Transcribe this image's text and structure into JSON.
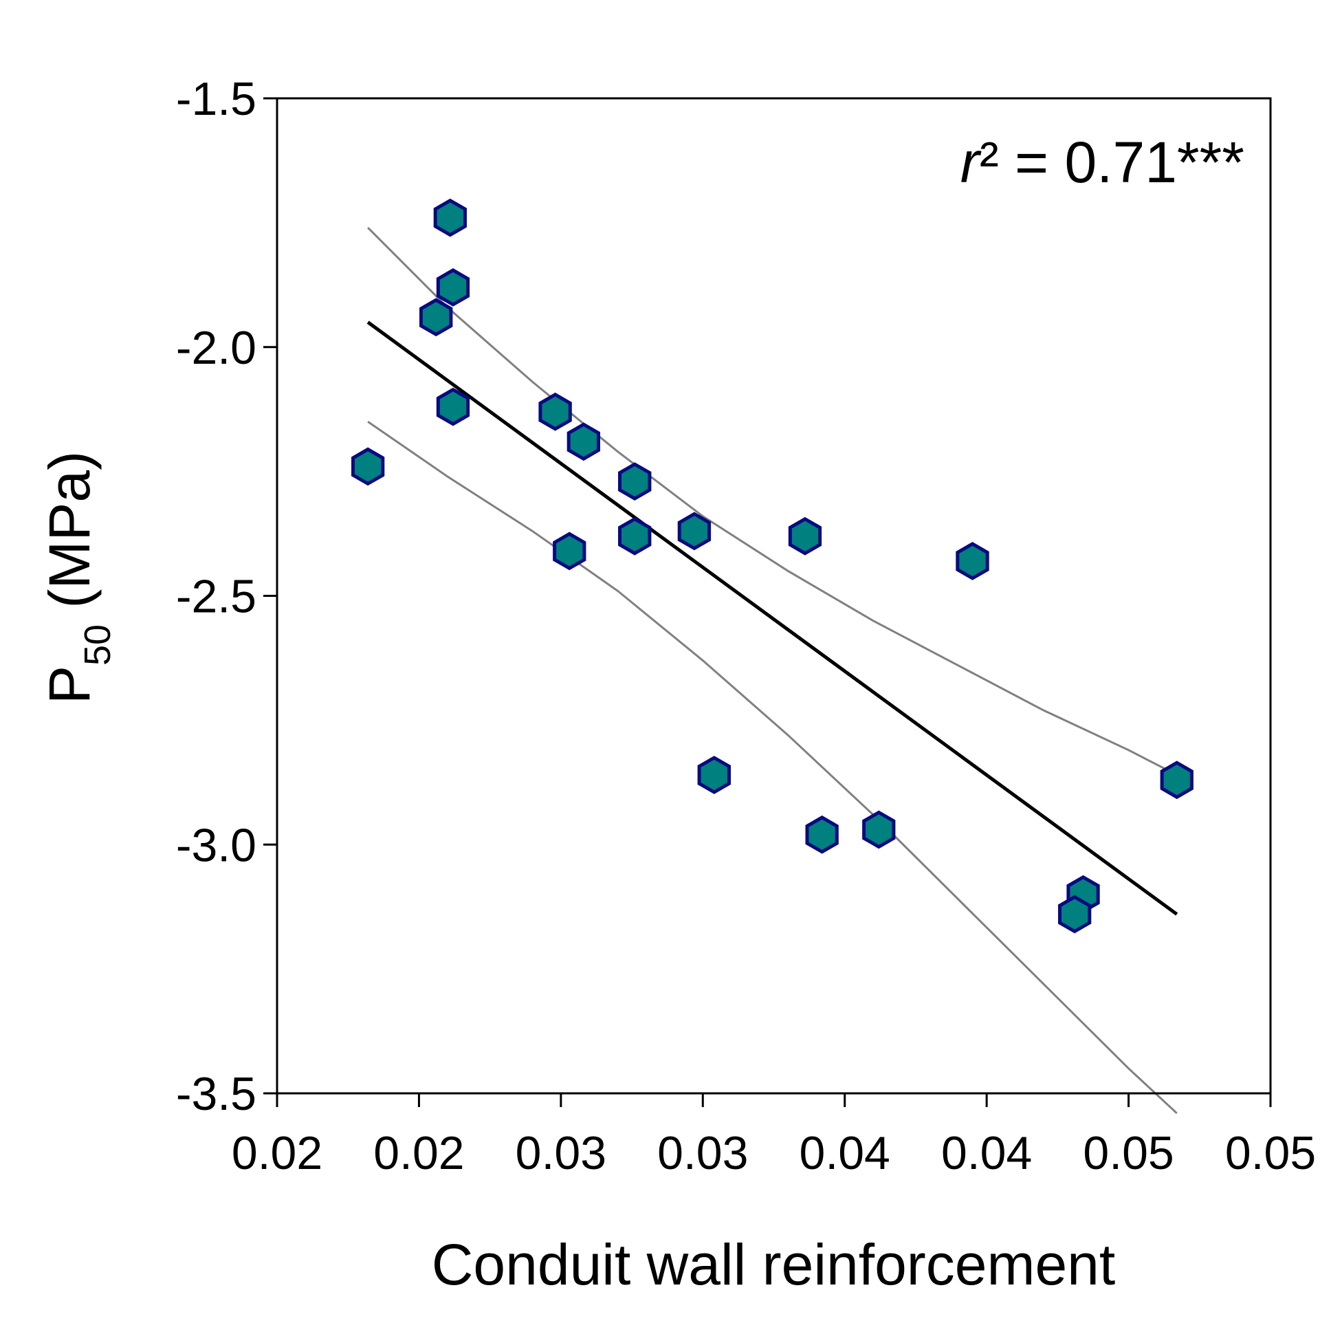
{
  "chart_data": {
    "type": "scatter",
    "xlabel": "Conduit wall reinforcement",
    "ylabel_main": "P",
    "ylabel_sub": "50",
    "ylabel_unit": " (MPa)",
    "annotation": {
      "italic": "r",
      "rest": "² = 0.71***"
    },
    "xlim": [
      0.015,
      0.05
    ],
    "ylim": [
      -3.5,
      -1.5
    ],
    "x_ticks": [
      0.015,
      0.02,
      0.025,
      0.03,
      0.035,
      0.04,
      0.045,
      0.05
    ],
    "x_tick_labels": [
      "0.02",
      "0.02",
      "0.03",
      "0.03",
      "0.04",
      "0.04",
      "0.05",
      "0.05"
    ],
    "y_ticks": [
      -1.5,
      -2.0,
      -2.5,
      -3.0,
      -3.5
    ],
    "y_tick_labels": [
      "-1.5",
      "-2.0",
      "-2.5",
      "-3.0",
      "-3.5"
    ],
    "grid": false,
    "colors": {
      "marker_fill": "#00807f",
      "marker_edge": "#0a0a80",
      "fit_line": "#000000",
      "ci_line": "#808080"
    },
    "points": [
      {
        "x": 0.0182,
        "y": -2.24
      },
      {
        "x": 0.0206,
        "y": -1.94
      },
      {
        "x": 0.0211,
        "y": -1.74
      },
      {
        "x": 0.0212,
        "y": -1.88
      },
      {
        "x": 0.0212,
        "y": -2.12
      },
      {
        "x": 0.0248,
        "y": -2.13
      },
      {
        "x": 0.0253,
        "y": -2.41
      },
      {
        "x": 0.0258,
        "y": -2.19
      },
      {
        "x": 0.0276,
        "y": -2.27
      },
      {
        "x": 0.0276,
        "y": -2.38
      },
      {
        "x": 0.0297,
        "y": -2.37
      },
      {
        "x": 0.0304,
        "y": -2.86
      },
      {
        "x": 0.0336,
        "y": -2.38
      },
      {
        "x": 0.0342,
        "y": -2.98
      },
      {
        "x": 0.0362,
        "y": -2.97
      },
      {
        "x": 0.0395,
        "y": -2.43
      },
      {
        "x": 0.0434,
        "y": -3.1
      },
      {
        "x": 0.0431,
        "y": -3.14
      },
      {
        "x": 0.0467,
        "y": -2.87
      }
    ],
    "fit_line": {
      "x": [
        0.0182,
        0.0467
      ],
      "y": [
        -1.95,
        -3.14
      ]
    },
    "ci_upper": {
      "x": [
        0.0182,
        0.021,
        0.024,
        0.027,
        0.03,
        0.033,
        0.036,
        0.039,
        0.042,
        0.045,
        0.0467
      ],
      "y": [
        -1.76,
        -1.92,
        -2.07,
        -2.21,
        -2.34,
        -2.45,
        -2.55,
        -2.64,
        -2.73,
        -2.81,
        -2.86
      ]
    },
    "ci_lower": {
      "x": [
        0.0182,
        0.021,
        0.024,
        0.027,
        0.03,
        0.033,
        0.036,
        0.039,
        0.042,
        0.045,
        0.0467
      ],
      "y": [
        -2.15,
        -2.26,
        -2.37,
        -2.49,
        -2.63,
        -2.78,
        -2.94,
        -3.11,
        -3.28,
        -3.45,
        -3.54
      ]
    }
  }
}
